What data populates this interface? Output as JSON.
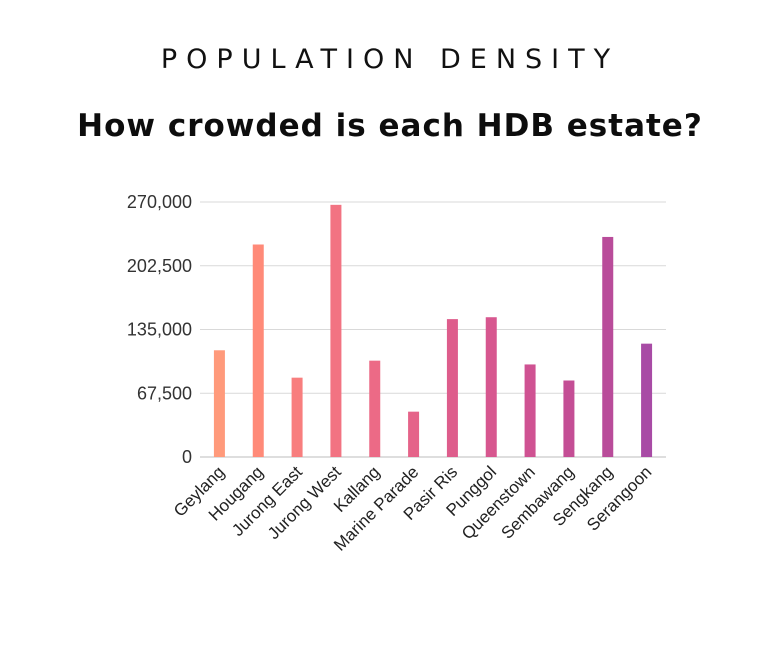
{
  "header": {
    "kicker": "POPULATION DENSITY",
    "title": "How crowded is each HDB estate?"
  },
  "chart_data": {
    "type": "bar",
    "categories": [
      "Geylang",
      "Hougang",
      "Jurong East",
      "Jurong West",
      "Kallang",
      "Marine Parade",
      "Pasir Ris",
      "Punggol",
      "Queenstown",
      "Sembawang",
      "Sengkang",
      "Serangoon"
    ],
    "values": [
      113000,
      225000,
      84000,
      267000,
      102000,
      48000,
      146000,
      148000,
      98000,
      81000,
      233000,
      120000
    ],
    "colors": [
      "#FF9A7B",
      "#FF8A78",
      "#F87E7E",
      "#F27382",
      "#EC6A86",
      "#E56389",
      "#DE5D8C",
      "#D7578F",
      "#CF5292",
      "#C44E95",
      "#B94C9A",
      "#A84BA5"
    ],
    "yticks": [
      "0",
      "67,500",
      "135,000",
      "202,500",
      "270,000"
    ],
    "ylim": [
      0,
      270000
    ],
    "grid": true,
    "legend": "none",
    "title": "How crowded is each HDB estate?",
    "xlabel": "",
    "ylabel": ""
  }
}
